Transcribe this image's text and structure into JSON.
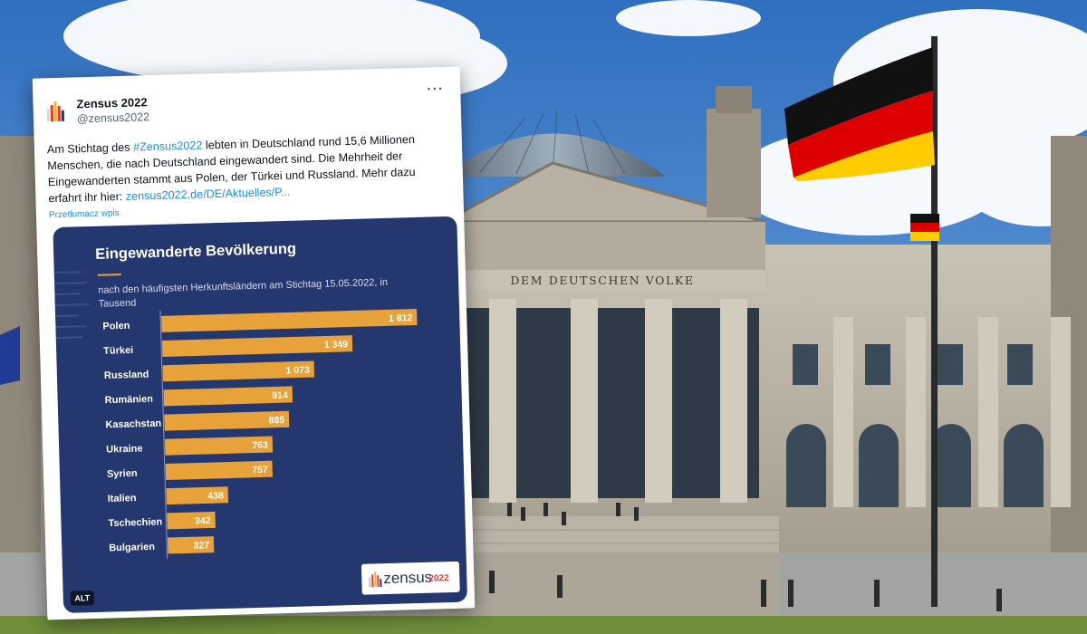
{
  "background": {
    "inscription": "DEM DEUTSCHEN VOLKE",
    "flag_colors": [
      "#111111",
      "#dd0000",
      "#ffcc00"
    ]
  },
  "tweet": {
    "author_name": "Zensus 2022",
    "handle": "@zensus2022",
    "more_icon": "more-dots-icon",
    "text_before": "Am Stichtag des ",
    "hashtag": "#Zensus2022",
    "text_after": " lebten in Deutschland rund 15,6 Millionen Menschen, die nach Deutschland eingewandert sind. Die Mehrheit der Eingewanderten stammt aus Polen, der Türkei und Russland. Mehr dazu erfahrt ihr hier: ",
    "link": "zensus2022.de/DE/Aktuelles/P...",
    "translate": "Przetłumacz wpis",
    "link_color": "#1d8fd8"
  },
  "chart_image": {
    "alt_badge": "ALT",
    "logo_word": "zensus",
    "logo_year": "2022",
    "background_color": "#24376f",
    "bar_color": "#e8a23a"
  },
  "chart_data": {
    "type": "bar",
    "orientation": "horizontal",
    "title": "Eingewanderte Bevölkerung",
    "subtitle": "nach den häufigsten Herkunftsländern am Stichtag 15.05.2022, in Tausend",
    "categories": [
      "Polen",
      "Türkei",
      "Russland",
      "Rumänien",
      "Kasachstan",
      "Ukraine",
      "Syrien",
      "Italien",
      "Tschechien",
      "Bulgarien"
    ],
    "values": [
      1812,
      1349,
      1073,
      914,
      885,
      763,
      757,
      438,
      342,
      327
    ],
    "value_labels": [
      "1 812",
      "1 349",
      "1 073",
      "914",
      "885",
      "763",
      "757",
      "438",
      "342",
      "327"
    ],
    "xlim": [
      0,
      1812
    ]
  }
}
